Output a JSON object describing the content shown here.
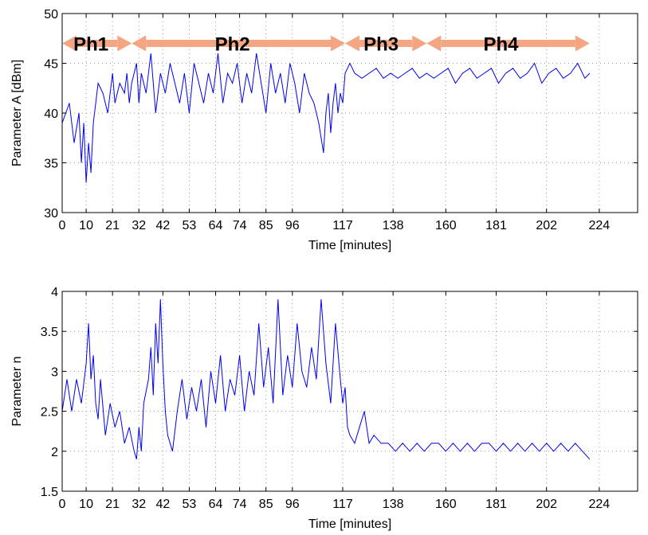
{
  "chart_data": [
    {
      "type": "line",
      "xlabel": "Time [minutes]",
      "ylabel": "Parameter A [dBm]",
      "xlim": [
        0,
        240
      ],
      "ylim": [
        30,
        50
      ],
      "xtick_values": [
        0,
        10,
        21,
        32,
        42,
        53,
        64,
        74,
        85,
        96,
        117,
        138,
        160,
        181,
        202,
        224
      ],
      "xtick_labels": [
        "0",
        "10",
        "21",
        "32",
        "42",
        "53",
        "64",
        "74",
        "85",
        "96",
        "117",
        "138",
        "160",
        "181",
        "202",
        "224"
      ],
      "ytick_values": [
        30,
        35,
        40,
        45,
        50
      ],
      "ytick_labels": [
        "30",
        "35",
        "40",
        "45",
        "50"
      ],
      "grid": true,
      "annotation_color": "#f4a582",
      "phases": [
        {
          "label": "Ph1",
          "start": 0,
          "end": 29,
          "y": 47,
          "label_x": 12
        },
        {
          "label": "Ph2",
          "start": 29,
          "end": 118,
          "y": 47,
          "label_x": 71
        },
        {
          "label": "Ph3",
          "start": 118,
          "end": 152,
          "y": 47,
          "label_x": 133
        },
        {
          "label": "Ph4",
          "start": 152,
          "end": 220,
          "y": 47,
          "label_x": 183
        }
      ],
      "series": [
        {
          "color": "#0000ee",
          "x": [
            0,
            3,
            5,
            7,
            8,
            9,
            10,
            11,
            12,
            13,
            14,
            15,
            17,
            19,
            21,
            22,
            24,
            26,
            27,
            28,
            29,
            31,
            32,
            33,
            35,
            37,
            39,
            41,
            43,
            45,
            47,
            49,
            51,
            53,
            55,
            57,
            59,
            61,
            63,
            65,
            67,
            69,
            71,
            73,
            75,
            77,
            79,
            81,
            83,
            85,
            87,
            89,
            91,
            93,
            95,
            97,
            99,
            101,
            103,
            105,
            107,
            109,
            110,
            111,
            112,
            113,
            114,
            115,
            116,
            117,
            118,
            120,
            122,
            125,
            128,
            131,
            134,
            137,
            140,
            143,
            146,
            149,
            152,
            155,
            158,
            161,
            164,
            167,
            170,
            173,
            176,
            179,
            182,
            185,
            188,
            191,
            194,
            197,
            200,
            203,
            206,
            209,
            212,
            215,
            218,
            220
          ],
          "y": [
            39,
            41,
            37,
            40,
            35,
            39,
            33,
            37,
            34,
            39,
            41,
            43,
            42,
            40,
            44,
            41,
            43,
            42,
            44,
            41,
            43,
            45,
            41,
            44,
            42,
            46,
            40,
            44,
            42,
            45,
            43,
            41,
            44,
            40,
            45,
            43,
            41,
            44,
            42,
            46,
            41,
            44,
            43,
            45,
            41,
            44,
            42,
            46,
            43,
            40,
            45,
            42,
            44,
            41,
            45,
            43,
            40,
            44,
            42,
            41,
            39,
            36,
            40,
            42,
            38,
            41,
            43,
            40,
            42,
            41,
            44,
            45,
            44,
            43.5,
            44,
            44.5,
            43.5,
            44,
            43.5,
            44,
            44.5,
            43.5,
            44,
            43.5,
            44,
            44.5,
            43,
            44,
            44.5,
            43.5,
            44,
            44.5,
            43,
            44,
            44.5,
            43.5,
            44,
            45,
            43,
            44,
            44.5,
            43.5,
            44,
            45,
            43.5,
            44
          ]
        }
      ]
    },
    {
      "type": "line",
      "xlabel": "Time [minutes]",
      "ylabel": "Parameter n",
      "xlim": [
        0,
        240
      ],
      "ylim": [
        1.5,
        4
      ],
      "xtick_values": [
        0,
        10,
        21,
        32,
        42,
        53,
        64,
        74,
        85,
        96,
        117,
        138,
        160,
        181,
        202,
        224
      ],
      "xtick_labels": [
        "0",
        "10",
        "21",
        "32",
        "42",
        "53",
        "64",
        "74",
        "85",
        "96",
        "117",
        "138",
        "160",
        "181",
        "202",
        "224"
      ],
      "ytick_values": [
        1.5,
        2,
        2.5,
        3,
        3.5,
        4
      ],
      "ytick_labels": [
        "1.5",
        "2",
        "2.5",
        "3",
        "3.5",
        "4"
      ],
      "grid": true,
      "series": [
        {
          "color": "#0000ee",
          "x": [
            0,
            2,
            4,
            6,
            8,
            10,
            11,
            12,
            13,
            14,
            15,
            16,
            18,
            20,
            22,
            24,
            26,
            28,
            30,
            31,
            32,
            33,
            34,
            36,
            37,
            38,
            39,
            40,
            41,
            42,
            43,
            44,
            46,
            48,
            50,
            52,
            54,
            56,
            58,
            60,
            62,
            64,
            66,
            68,
            70,
            72,
            74,
            76,
            78,
            80,
            82,
            84,
            86,
            88,
            90,
            92,
            94,
            96,
            98,
            100,
            102,
            104,
            106,
            108,
            110,
            112,
            114,
            116,
            117,
            118,
            119,
            120,
            122,
            124,
            126,
            128,
            130,
            133,
            136,
            139,
            142,
            145,
            148,
            151,
            154,
            157,
            160,
            163,
            166,
            169,
            172,
            175,
            178,
            181,
            184,
            187,
            190,
            193,
            196,
            199,
            202,
            205,
            208,
            211,
            214,
            217,
            220
          ],
          "y": [
            2.5,
            2.9,
            2.5,
            2.9,
            2.6,
            3.1,
            3.6,
            2.9,
            3.2,
            2.6,
            2.4,
            2.9,
            2.2,
            2.6,
            2.3,
            2.5,
            2.1,
            2.3,
            2.0,
            1.9,
            2.3,
            2.0,
            2.6,
            2.9,
            3.3,
            2.7,
            3.6,
            3.1,
            3.9,
            3.1,
            2.5,
            2.2,
            2.0,
            2.5,
            2.9,
            2.4,
            2.8,
            2.5,
            2.9,
            2.3,
            3.0,
            2.6,
            3.2,
            2.5,
            2.9,
            2.7,
            3.2,
            2.5,
            3.0,
            2.7,
            3.6,
            2.8,
            3.3,
            2.6,
            3.9,
            2.7,
            3.2,
            2.8,
            3.6,
            3.0,
            2.8,
            3.3,
            2.9,
            3.9,
            3.1,
            2.6,
            3.6,
            2.9,
            2.6,
            2.8,
            2.3,
            2.2,
            2.1,
            2.3,
            2.5,
            2.1,
            2.2,
            2.1,
            2.1,
            2.0,
            2.1,
            2.0,
            2.1,
            2.0,
            2.1,
            2.1,
            2.0,
            2.1,
            2.0,
            2.1,
            2.0,
            2.1,
            2.1,
            2.0,
            2.1,
            2.0,
            2.1,
            2.0,
            2.1,
            2.0,
            2.1,
            2.0,
            2.1,
            2.0,
            2.1,
            2.0,
            1.9
          ]
        }
      ]
    }
  ]
}
